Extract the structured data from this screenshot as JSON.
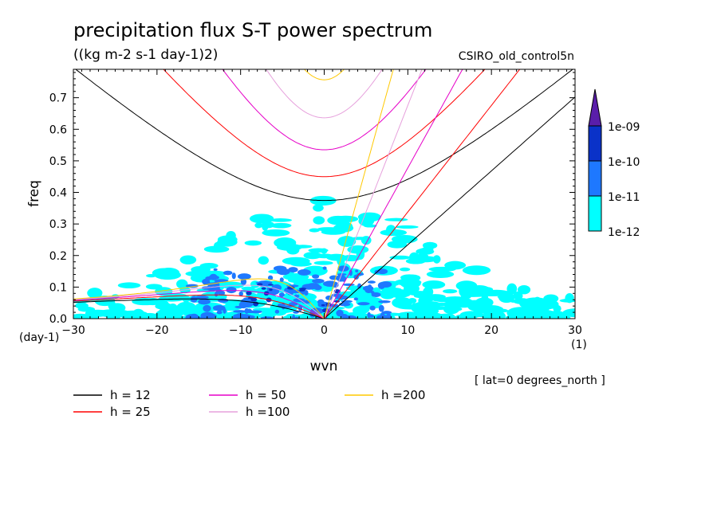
{
  "chart_data": {
    "type": "contour",
    "title": "precipitation flux S-T power spectrum",
    "subtitle": "((kg m-2 s-1 day-1)2)",
    "dataset": "CSIRO_old_control5n",
    "xlabel": "wvn",
    "ylabel": "freq",
    "x_units": "(1)",
    "y_units": "(day-1)",
    "xlim": [
      -30,
      30
    ],
    "ylim": [
      0,
      0.79
    ],
    "xticks": [
      -30,
      -20,
      -10,
      0,
      10,
      20,
      30
    ],
    "yticks": [
      0.0,
      0.1,
      0.2,
      0.3,
      0.4,
      0.5,
      0.6,
      0.7
    ],
    "footer_note": "[ lat=0 degrees_north ]",
    "colorbar": {
      "levels": [
        "1e-12",
        "1e-11",
        "1e-10",
        "1e-09"
      ],
      "colors": [
        "#00ffff",
        "#1e78ff",
        "#0a32c8",
        "#5a1eaa"
      ]
    },
    "dispersion_curves": [
      {
        "name": "h = 12",
        "h": 12,
        "color": "#000000"
      },
      {
        "name": "h = 25",
        "h": 25,
        "color": "#ff0000"
      },
      {
        "name": "h = 50",
        "h": 50,
        "color": "#e600c8"
      },
      {
        "name": "h =100",
        "h": 100,
        "color": "#e6a0dc"
      },
      {
        "name": "h =200",
        "h": 200,
        "color": "#ffc800"
      }
    ],
    "grid": false,
    "legend_position": "bottom-left"
  }
}
